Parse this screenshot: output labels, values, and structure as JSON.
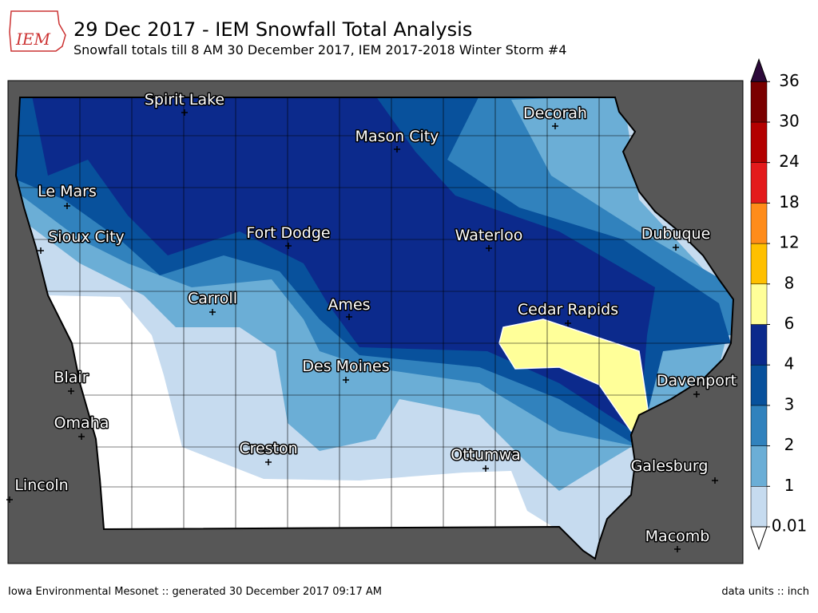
{
  "header": {
    "logo_text": "IEM",
    "title": "29 Dec 2017 - IEM Snowfall Total Analysis",
    "subtitle": "Snowfall totals till 8 AM 30 December 2017, IEM 2017-2018 Winter Storm #4"
  },
  "map": {
    "cities": [
      "Spirit Lake",
      "Mason City",
      "Decorah",
      "Le Mars",
      "Sioux City",
      "Fort Dodge",
      "Waterloo",
      "Dubuque",
      "Carroll",
      "Ames",
      "Cedar Rapids",
      "Des Moines",
      "Blair",
      "Davenport",
      "Omaha",
      "Creston",
      "Ottumwa",
      "Galesburg",
      "Lincoln",
      "Macomb"
    ]
  },
  "colorbar": {
    "ticks": [
      0.01,
      1,
      2,
      3,
      4,
      6,
      8,
      12,
      18,
      24,
      30,
      36
    ],
    "colors": [
      "#c6dbef",
      "#6baed6",
      "#3182bd",
      "#08519c",
      "#0c2a8c",
      "#ffff99",
      "#ffc000",
      "#ff8c1a",
      "#e31a1c",
      "#b30000",
      "#7a0000"
    ],
    "over_color": "#2d0a3b",
    "under_color": "#ffffff"
  },
  "footer": {
    "left": "Iowa Environmental Mesonet :: generated 30 December 2017 09:17 AM",
    "right": "data units :: inch"
  }
}
